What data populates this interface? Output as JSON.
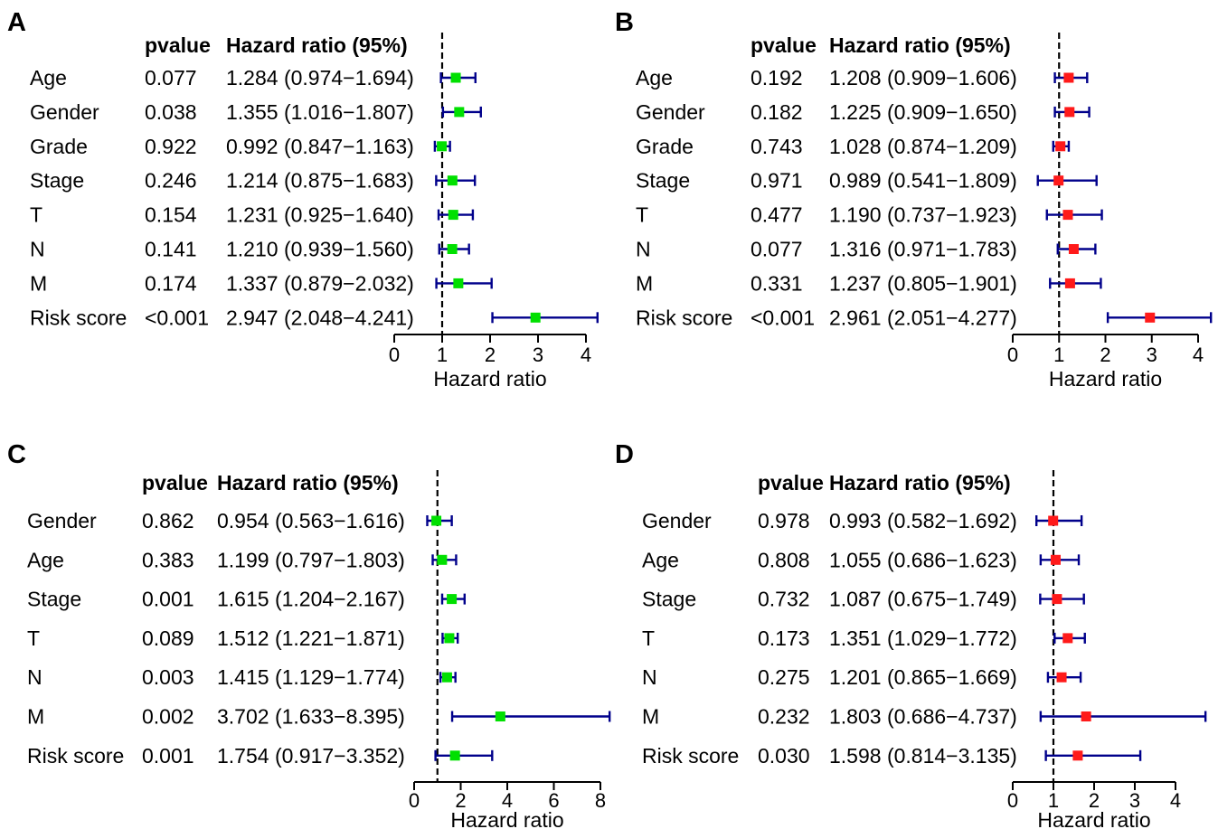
{
  "colors": {
    "interval": "#00008b",
    "point_green": "#00e000",
    "point_red": "#ff1a1a",
    "axis": "#000000"
  },
  "header": {
    "pvalue": "pvalue",
    "hr": "Hazard ratio (95%)"
  },
  "chart_data": [
    {
      "panel": "A",
      "type": "forest",
      "xlabel": "Hazard ratio",
      "xlim": [
        0,
        4
      ],
      "ticks": [
        0,
        1,
        2,
        3,
        4
      ],
      "reference_line": 1,
      "point_color": "green",
      "rows": [
        {
          "label": "Age",
          "pvalue": "0.077",
          "hr_text": "1.284 (0.974−1.694)",
          "hr": 1.284,
          "lo": 0.974,
          "hi": 1.694
        },
        {
          "label": "Gender",
          "pvalue": "0.038",
          "hr_text": "1.355 (1.016−1.807)",
          "hr": 1.355,
          "lo": 1.016,
          "hi": 1.807
        },
        {
          "label": "Grade",
          "pvalue": "0.922",
          "hr_text": "0.992 (0.847−1.163)",
          "hr": 0.992,
          "lo": 0.847,
          "hi": 1.163
        },
        {
          "label": "Stage",
          "pvalue": "0.246",
          "hr_text": "1.214 (0.875−1.683)",
          "hr": 1.214,
          "lo": 0.875,
          "hi": 1.683
        },
        {
          "label": "T",
          "pvalue": "0.154",
          "hr_text": "1.231 (0.925−1.640)",
          "hr": 1.231,
          "lo": 0.925,
          "hi": 1.64
        },
        {
          "label": "N",
          "pvalue": "0.141",
          "hr_text": "1.210 (0.939−1.560)",
          "hr": 1.21,
          "lo": 0.939,
          "hi": 1.56
        },
        {
          "label": "M",
          "pvalue": "0.174",
          "hr_text": "1.337 (0.879−2.032)",
          "hr": 1.337,
          "lo": 0.879,
          "hi": 2.032
        },
        {
          "label": "Risk score",
          "pvalue": "<0.001",
          "hr_text": "2.947 (2.048−4.241)",
          "hr": 2.947,
          "lo": 2.048,
          "hi": 4.241
        }
      ]
    },
    {
      "panel": "B",
      "type": "forest",
      "xlabel": "Hazard ratio",
      "xlim": [
        0,
        4
      ],
      "ticks": [
        0,
        1,
        2,
        3,
        4
      ],
      "reference_line": 1,
      "point_color": "red",
      "rows": [
        {
          "label": "Age",
          "pvalue": "0.192",
          "hr_text": "1.208 (0.909−1.606)",
          "hr": 1.208,
          "lo": 0.909,
          "hi": 1.606
        },
        {
          "label": "Gender",
          "pvalue": "0.182",
          "hr_text": "1.225 (0.909−1.650)",
          "hr": 1.225,
          "lo": 0.909,
          "hi": 1.65
        },
        {
          "label": "Grade",
          "pvalue": "0.743",
          "hr_text": "1.028 (0.874−1.209)",
          "hr": 1.028,
          "lo": 0.874,
          "hi": 1.209
        },
        {
          "label": "Stage",
          "pvalue": "0.971",
          "hr_text": "0.989 (0.541−1.809)",
          "hr": 0.989,
          "lo": 0.541,
          "hi": 1.809
        },
        {
          "label": "T",
          "pvalue": "0.477",
          "hr_text": "1.190 (0.737−1.923)",
          "hr": 1.19,
          "lo": 0.737,
          "hi": 1.923
        },
        {
          "label": "N",
          "pvalue": "0.077",
          "hr_text": "1.316 (0.971−1.783)",
          "hr": 1.316,
          "lo": 0.971,
          "hi": 1.783
        },
        {
          "label": "M",
          "pvalue": "0.331",
          "hr_text": "1.237 (0.805−1.901)",
          "hr": 1.237,
          "lo": 0.805,
          "hi": 1.901
        },
        {
          "label": "Risk score",
          "pvalue": "<0.001",
          "hr_text": "2.961 (2.051−4.277)",
          "hr": 2.961,
          "lo": 2.051,
          "hi": 4.277
        }
      ]
    },
    {
      "panel": "C",
      "type": "forest",
      "xlabel": "Hazard ratio",
      "xlim": [
        0,
        8
      ],
      "ticks": [
        0,
        2,
        4,
        6,
        8
      ],
      "reference_line": 1,
      "point_color": "green",
      "rows": [
        {
          "label": "Gender",
          "pvalue": "0.862",
          "hr_text": "0.954 (0.563−1.616)",
          "hr": 0.954,
          "lo": 0.563,
          "hi": 1.616
        },
        {
          "label": "Age",
          "pvalue": "0.383",
          "hr_text": "1.199 (0.797−1.803)",
          "hr": 1.199,
          "lo": 0.797,
          "hi": 1.803
        },
        {
          "label": "Stage",
          "pvalue": "0.001",
          "hr_text": "1.615 (1.204−2.167)",
          "hr": 1.615,
          "lo": 1.204,
          "hi": 2.167
        },
        {
          "label": "T",
          "pvalue": "0.089",
          "hr_text": "1.512 (1.221−1.871)",
          "hr": 1.512,
          "lo": 1.221,
          "hi": 1.871
        },
        {
          "label": "N",
          "pvalue": "0.003",
          "hr_text": "1.415 (1.129−1.774)",
          "hr": 1.415,
          "lo": 1.129,
          "hi": 1.774
        },
        {
          "label": "M",
          "pvalue": "0.002",
          "hr_text": "3.702 (1.633−8.395)",
          "hr": 3.702,
          "lo": 1.633,
          "hi": 8.395
        },
        {
          "label": "Risk score",
          "pvalue": "0.001",
          "hr_text": "1.754 (0.917−3.352)",
          "hr": 1.754,
          "lo": 0.917,
          "hi": 3.352
        }
      ]
    },
    {
      "panel": "D",
      "type": "forest",
      "xlabel": "Hazard ratio",
      "xlim": [
        0,
        4
      ],
      "ticks": [
        0,
        1,
        2,
        3,
        4
      ],
      "reference_line": 1,
      "point_color": "red",
      "rows": [
        {
          "label": "Gender",
          "pvalue": "0.978",
          "hr_text": "0.993 (0.582−1.692)",
          "hr": 0.993,
          "lo": 0.582,
          "hi": 1.692
        },
        {
          "label": "Age",
          "pvalue": "0.808",
          "hr_text": "1.055 (0.686−1.623)",
          "hr": 1.055,
          "lo": 0.686,
          "hi": 1.623
        },
        {
          "label": "Stage",
          "pvalue": "0.732",
          "hr_text": "1.087 (0.675−1.749)",
          "hr": 1.087,
          "lo": 0.675,
          "hi": 1.749
        },
        {
          "label": "T",
          "pvalue": "0.173",
          "hr_text": "1.351 (1.029−1.772)",
          "hr": 1.351,
          "lo": 1.029,
          "hi": 1.772
        },
        {
          "label": "N",
          "pvalue": "0.275",
          "hr_text": "1.201 (0.865−1.669)",
          "hr": 1.201,
          "lo": 0.865,
          "hi": 1.669
        },
        {
          "label": "M",
          "pvalue": "0.232",
          "hr_text": "1.803 (0.686−4.737)",
          "hr": 1.803,
          "lo": 0.686,
          "hi": 4.737
        },
        {
          "label": "Risk score",
          "pvalue": "0.030",
          "hr_text": "1.598 (0.814−3.135)",
          "hr": 1.598,
          "lo": 0.814,
          "hi": 3.135
        }
      ]
    }
  ]
}
